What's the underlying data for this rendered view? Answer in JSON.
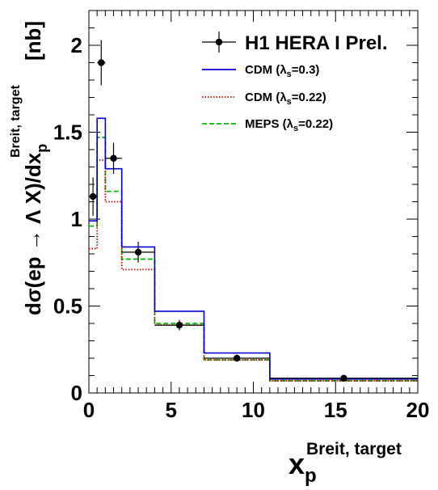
{
  "chart_data": {
    "type": "histogram",
    "xlim": [
      0,
      20
    ],
    "ylim": [
      0,
      2.2
    ],
    "x_ticks": [
      0,
      5,
      10,
      15,
      20
    ],
    "x_tick_labels": [
      "0",
      "5",
      "10",
      "15",
      "20"
    ],
    "y_ticks": [
      0,
      0.5,
      1,
      1.5,
      2
    ],
    "y_tick_labels": [
      "0",
      "0.5",
      "1",
      "1.5",
      "2"
    ],
    "xlabel": {
      "main": "x",
      "subscript": "p",
      "superscript": "Breit, target"
    },
    "ylabel": {
      "main": "dσ(ep → Λ X)/dx",
      "subscript": "p",
      "superscript": "Breit, target",
      "unit": "[nb]"
    },
    "bin_edges": [
      0,
      0.5,
      1,
      2,
      4,
      7,
      11,
      20
    ],
    "series": [
      {
        "name": "CDM (λs=0.3)",
        "label": {
          "main": "CDM (λ",
          "sub": "s",
          "rest": "=0.3)"
        },
        "style": "solid",
        "color": "#0000cc",
        "values": [
          0.99,
          1.58,
          1.29,
          0.84,
          0.47,
          0.23,
          0.08
        ]
      },
      {
        "name": "CDM (λs=0.22)",
        "label": {
          "main": "CDM (λ",
          "sub": "s",
          "rest": "=0.22)"
        },
        "style": "dotted",
        "color": "#cc0000",
        "values": [
          0.83,
          1.34,
          1.1,
          0.71,
          0.39,
          0.19,
          0.07
        ]
      },
      {
        "name": "MEPS (λs=0.22)",
        "label": {
          "main": "MEPS (λ",
          "sub": "s",
          "rest": "=0.22)"
        },
        "style": "dashed",
        "color": "#00bb00",
        "values": [
          0.96,
          1.47,
          1.16,
          0.77,
          0.4,
          0.19,
          0.07
        ]
      }
    ],
    "data_points": {
      "name": "H1 HERA I Prel.",
      "color": "#000000",
      "points": [
        {
          "x": 0.25,
          "y": 1.13,
          "xerr": 0.25,
          "yerr": 0.11
        },
        {
          "x": 0.75,
          "y": 1.9,
          "xerr": 0.25,
          "yerr": 0.13
        },
        {
          "x": 1.5,
          "y": 1.35,
          "xerr": 0.5,
          "yerr": 0.09
        },
        {
          "x": 3.0,
          "y": 0.81,
          "xerr": 1.0,
          "yerr": 0.06
        },
        {
          "x": 5.5,
          "y": 0.39,
          "xerr": 1.5,
          "yerr": 0.03
        },
        {
          "x": 9.0,
          "y": 0.2,
          "xerr": 2.0,
          "yerr": 0.02
        },
        {
          "x": 15.5,
          "y": 0.085,
          "xerr": 4.5,
          "yerr": 0.01
        }
      ]
    },
    "legend_placement": "top-right",
    "grid": false
  }
}
